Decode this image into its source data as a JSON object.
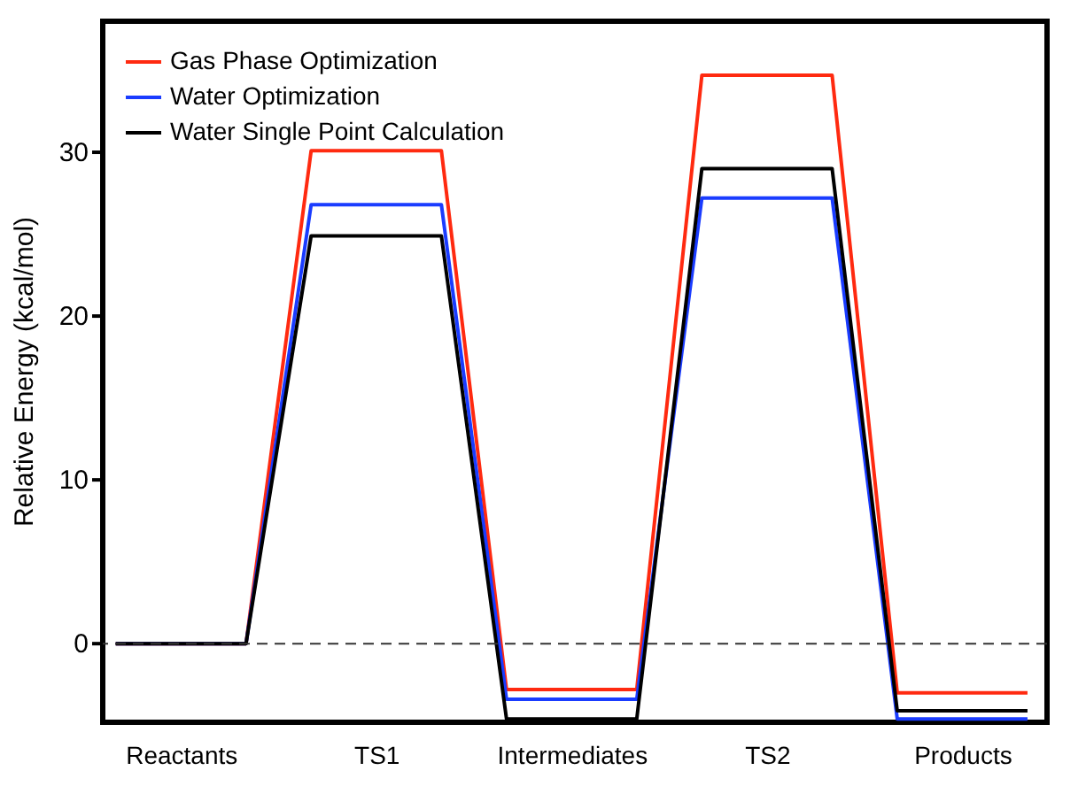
{
  "chart_data": {
    "type": "line",
    "ylabel": "Relative Energy (kcal/mol)",
    "categories": [
      null,
      "Reactants",
      null,
      null,
      "TS1",
      null,
      null,
      "Intermediates",
      null,
      null,
      "TS2",
      null,
      null,
      "Products",
      null
    ],
    "series": [
      {
        "name": "Gas Phase Optimization",
        "color": "#ff2a10",
        "values": [
          0,
          0,
          0,
          30.1,
          30.1,
          30.1,
          -2.8,
          -2.8,
          -2.8,
          34.7,
          34.7,
          34.7,
          -3.0,
          -3.0,
          -3.0
        ]
      },
      {
        "name": "Water Optimization",
        "color": "#1a3cff",
        "values": [
          0,
          0,
          0,
          26.8,
          26.8,
          26.8,
          -3.4,
          -3.4,
          -3.4,
          27.2,
          27.2,
          27.2,
          -4.6,
          -4.6,
          -4.6
        ]
      },
      {
        "name": "Water Single Point Calculation",
        "color": "#000000",
        "values": [
          0,
          0,
          0,
          24.9,
          24.9,
          24.9,
          -4.6,
          -4.6,
          -4.6,
          29.0,
          29.0,
          29.0,
          -4.1,
          -4.1,
          -4.1
        ]
      }
    ],
    "ylim": [
      -4.8,
      38
    ],
    "yticks": [
      0,
      10,
      20,
      30
    ],
    "ref_lines": [
      {
        "axis": "y",
        "value": 0,
        "line_style": "dashed",
        "color": "#333333"
      }
    ],
    "legend": "top left",
    "grid": false,
    "marker": "none",
    "line_style": "solid"
  }
}
